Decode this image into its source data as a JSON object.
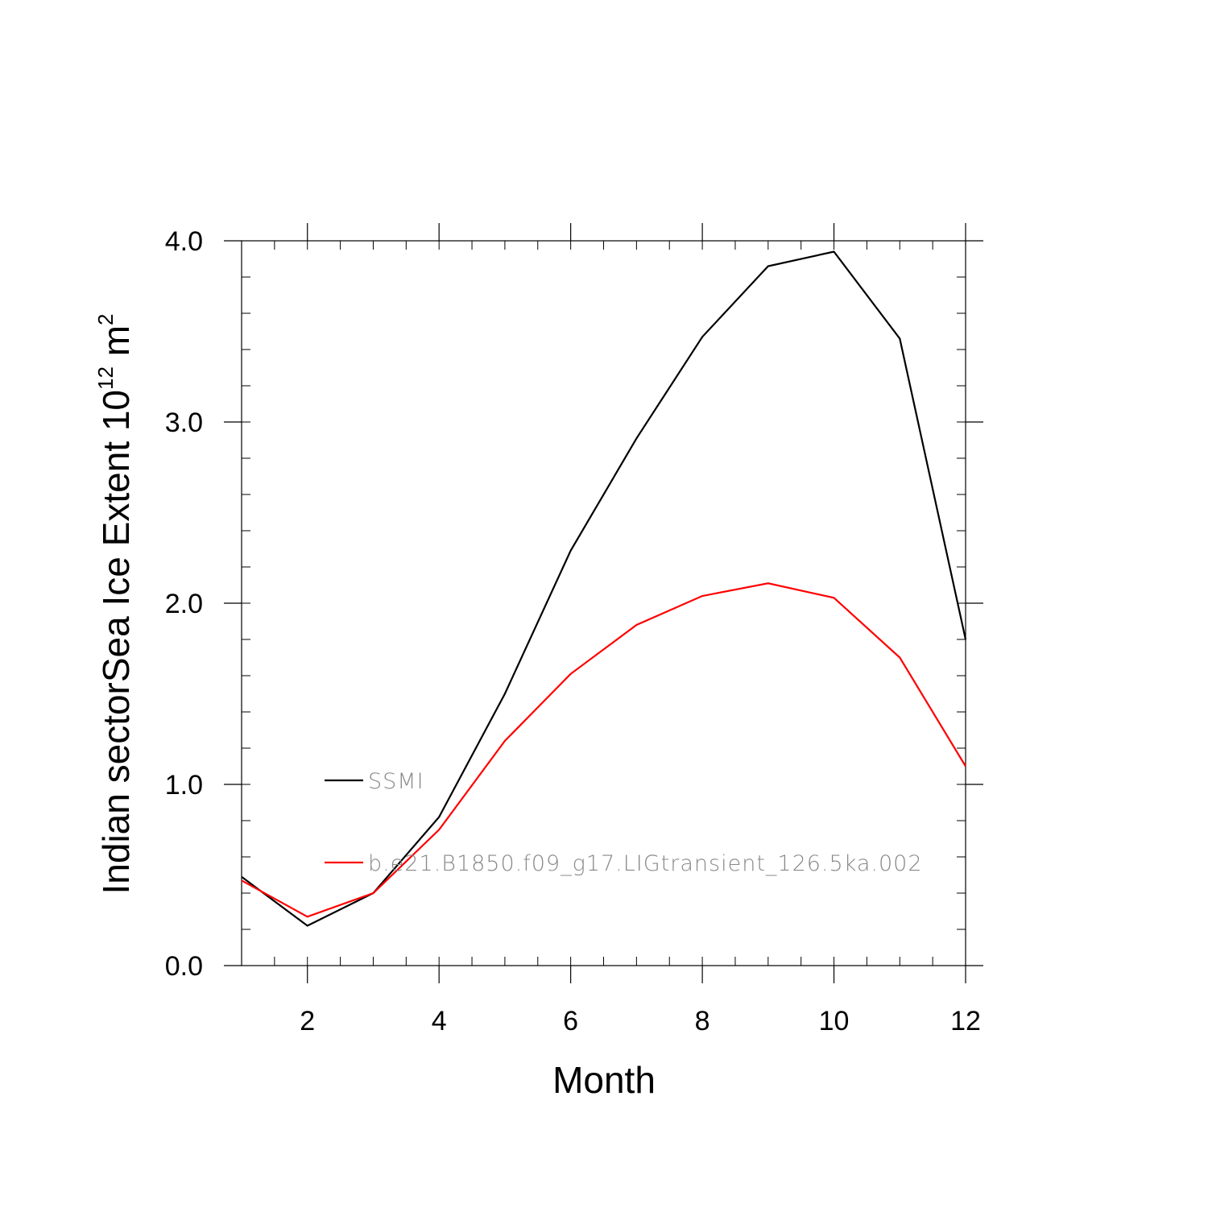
{
  "chart_data": {
    "type": "line",
    "title": "",
    "xlabel": "Month",
    "ylabel": "Indian sectorSea Ice Extent 10",
    "ylabel_exp": "12",
    "ylabel_unit": " m",
    "ylabel_unit_exp": "2",
    "xlim": [
      1,
      12
    ],
    "ylim": [
      0,
      4
    ],
    "x_ticks": [
      2,
      4,
      6,
      8,
      10,
      12
    ],
    "x_tick_labels": [
      "2",
      "4",
      "6",
      "8",
      "10",
      "12"
    ],
    "y_ticks": [
      0,
      1,
      2,
      3,
      4
    ],
    "y_tick_labels": [
      "0.0",
      "1.0",
      "2.0",
      "3.0",
      "4.0"
    ],
    "grid": false,
    "legend_placement": "inside-left",
    "x": [
      1,
      2,
      3,
      4,
      5,
      6,
      7,
      8,
      9,
      10,
      11,
      12
    ],
    "series": [
      {
        "name": "SSMI",
        "color": "#000000",
        "values": [
          0.49,
          0.22,
          0.4,
          0.82,
          1.5,
          2.29,
          2.91,
          3.47,
          3.86,
          3.94,
          3.46,
          1.8
        ]
      },
      {
        "name": "b.e21.B1850.f09_g17.LIGtransient_126.5ka.002",
        "color": "#ff0000",
        "values": [
          0.47,
          0.27,
          0.4,
          0.75,
          1.24,
          1.61,
          1.88,
          2.04,
          2.11,
          2.03,
          1.7,
          1.1
        ]
      }
    ]
  }
}
